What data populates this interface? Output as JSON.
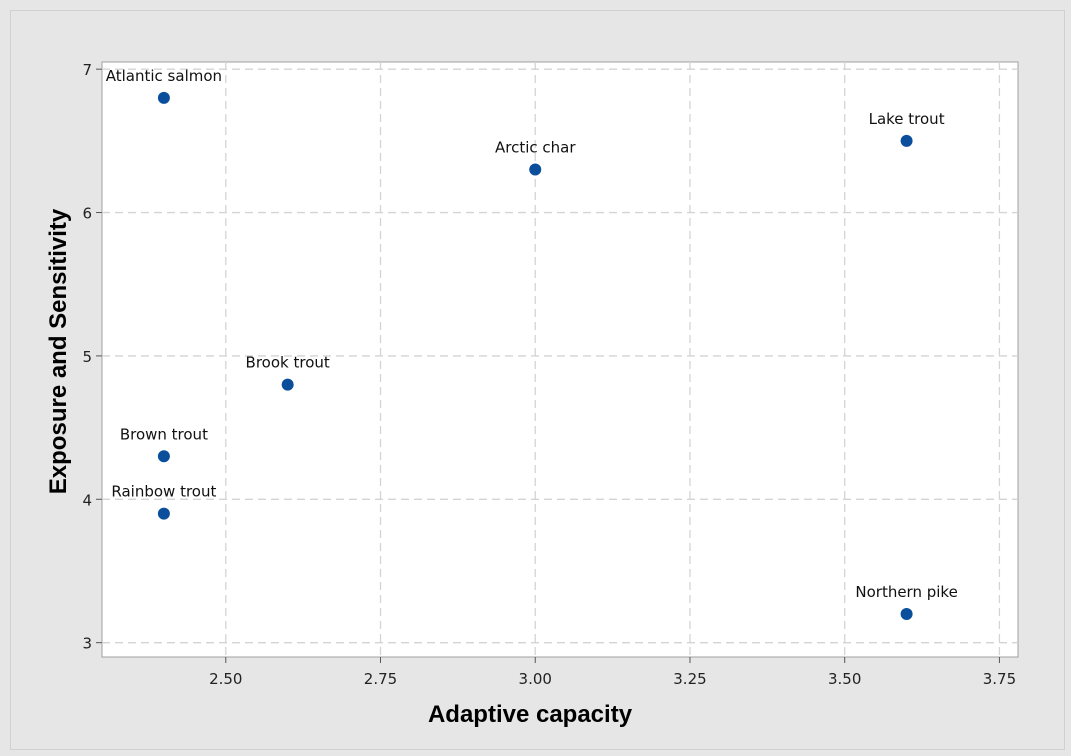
{
  "chart_data": {
    "type": "scatter",
    "xlabel": "Adaptive capacity",
    "ylabel": "Exposure and Sensitivity",
    "xlim": [
      2.3,
      3.78
    ],
    "ylim": [
      2.9,
      7.05
    ],
    "xticks": [
      "2.50",
      "2.75",
      "3.00",
      "3.25",
      "3.50",
      "3.75"
    ],
    "yticks": [
      "3",
      "4",
      "5",
      "6",
      "7"
    ],
    "grid": true,
    "marker_color": "#0b4f9c",
    "points": [
      {
        "label": "Atlantic salmon",
        "x": 2.4,
        "y": 6.8
      },
      {
        "label": "Arctic char",
        "x": 3.0,
        "y": 6.3
      },
      {
        "label": "Lake trout",
        "x": 3.6,
        "y": 6.5
      },
      {
        "label": "Brook trout",
        "x": 2.6,
        "y": 4.8
      },
      {
        "label": "Brown trout",
        "x": 2.4,
        "y": 4.3
      },
      {
        "label": "Rainbow trout",
        "x": 2.4,
        "y": 3.9
      },
      {
        "label": "Northern pike",
        "x": 3.6,
        "y": 3.2
      }
    ]
  }
}
